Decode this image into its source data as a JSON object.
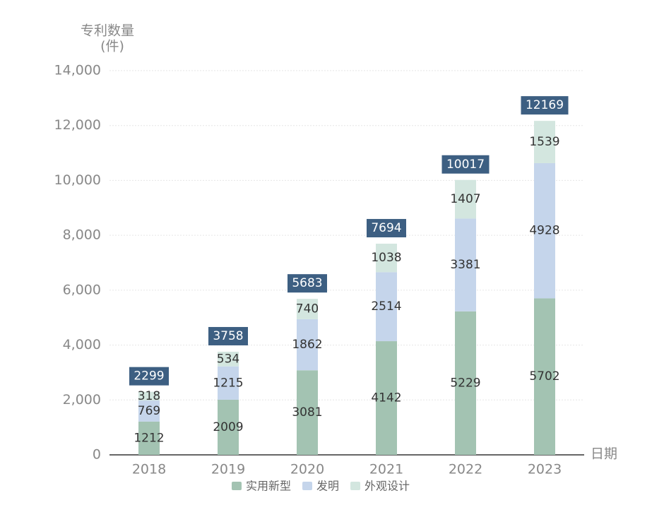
{
  "chart_data": {
    "type": "stacked_bar",
    "y_label": [
      "专利数量",
      "(件)"
    ],
    "x_label": "日期",
    "categories": [
      "2018",
      "2019",
      "2020",
      "2021",
      "2022",
      "2023"
    ],
    "series": [
      {
        "name": "实用新型",
        "color": "#a3c3b2",
        "values": [
          1212,
          2009,
          3081,
          4142,
          5229,
          5702
        ]
      },
      {
        "name": "发明",
        "color": "#c5d5eb",
        "values": [
          769,
          1215,
          1862,
          2514,
          3381,
          4928
        ]
      },
      {
        "name": "外观设计",
        "color": "#d3e6df",
        "values": [
          318,
          534,
          740,
          1038,
          1407,
          1539
        ]
      }
    ],
    "totals": [
      2299,
      3758,
      5683,
      7694,
      10017,
      12169
    ],
    "total_color": "#3d5f82",
    "ylim": [
      0,
      14000
    ],
    "yticks": [
      0,
      {
        "value": 2000,
        "label": "2,000"
      },
      {
        "value": 4000,
        "label": "4,000"
      },
      {
        "value": 6000,
        "label": "6,000"
      },
      {
        "value": 8000,
        "label": "8,000"
      },
      {
        "value": 10000,
        "label": "10,000"
      },
      {
        "value": 12000,
        "label": "12,000"
      },
      {
        "value": 14000,
        "label": "14,000"
      }
    ],
    "grid": true
  }
}
